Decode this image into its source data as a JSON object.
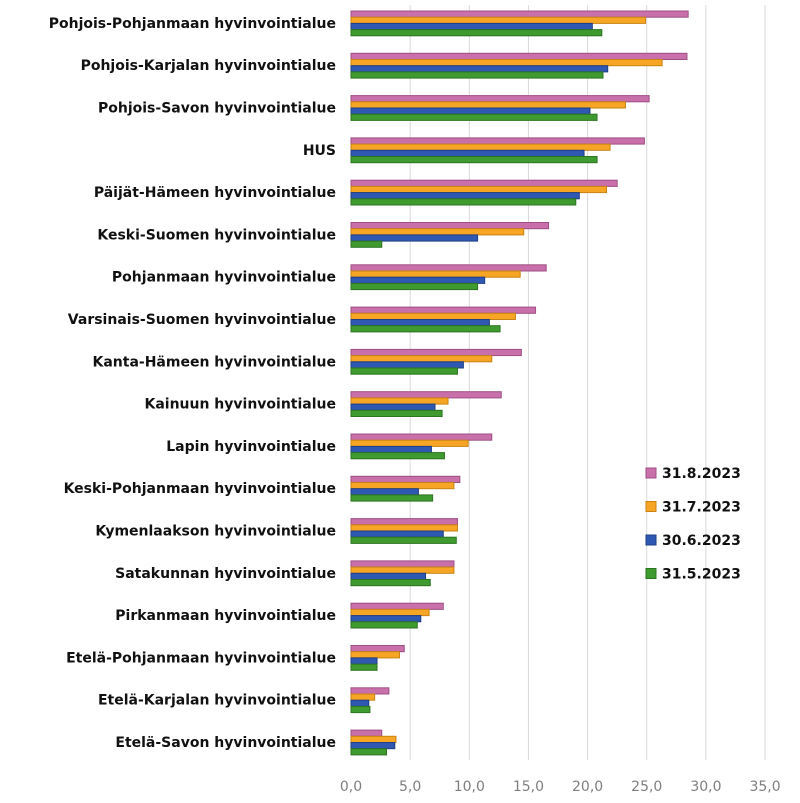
{
  "chart_data": {
    "type": "bar",
    "orientation": "horizontal",
    "categories": [
      "Pohjois-Pohjanmaan hyvinvointialue",
      "Pohjois-Karjalan hyvinvointialue",
      "Pohjois-Savon hyvinvointialue",
      "HUS",
      "Päijät-Hämeen hyvinvointialue",
      "Keski-Suomen hyvinvointialue",
      "Pohjanmaan hyvinvointialue",
      "Varsinais-Suomen hyvinvointialue",
      "Kanta-Hämeen hyvinvointialue",
      "Kainuun hyvinvointialue",
      "Lapin hyvinvointialue",
      "Keski-Pohjanmaan hyvinvointialue",
      "Kymenlaakson hyvinvointialue",
      "Satakunnan hyvinvointialue",
      "Pirkanmaan hyvinvointialue",
      "Etelä-Pohjanmaan hyvinvointialue",
      "Etelä-Karjalan hyvinvointialue",
      "Etelä-Savon hyvinvointialue"
    ],
    "series": [
      {
        "name": "31.8.2023",
        "color": "#c96faa",
        "border": "#9e4f84",
        "values": [
          28.5,
          28.4,
          25.2,
          24.8,
          22.5,
          16.7,
          16.5,
          15.6,
          14.4,
          12.7,
          11.9,
          9.2,
          9.0,
          8.7,
          7.8,
          4.5,
          3.2,
          2.6
        ]
      },
      {
        "name": "31.7.2023",
        "color": "#f7a524",
        "border": "#c98313",
        "values": [
          24.9,
          26.3,
          23.2,
          21.9,
          21.6,
          14.6,
          14.3,
          13.9,
          11.9,
          8.2,
          9.9,
          8.7,
          9.0,
          8.7,
          6.6,
          4.1,
          2.0,
          3.8
        ]
      },
      {
        "name": "30.6.2023",
        "color": "#2f58b3",
        "border": "#1f3f85",
        "values": [
          20.4,
          21.7,
          20.2,
          19.7,
          19.3,
          10.7,
          11.3,
          11.7,
          9.5,
          7.1,
          6.8,
          5.7,
          7.8,
          6.3,
          5.9,
          2.2,
          1.5,
          3.7
        ]
      },
      {
        "name": "31.5.2023",
        "color": "#3f9a2f",
        "border": "#2c7421",
        "values": [
          21.2,
          21.3,
          20.8,
          20.8,
          19.0,
          2.6,
          10.7,
          12.6,
          9.0,
          7.7,
          7.9,
          6.9,
          8.9,
          6.7,
          5.6,
          2.2,
          1.6,
          3.0
        ]
      }
    ],
    "xlim": [
      0,
      35
    ],
    "xticks": [
      "0,0",
      "5,0",
      "10,0",
      "15,0",
      "20,0",
      "25,0",
      "30,0",
      "35,0"
    ],
    "xtick_values": [
      0,
      5,
      10,
      15,
      20,
      25,
      30,
      35
    ],
    "grid": "vertical",
    "legend_position": "right",
    "title": "",
    "xlabel": "",
    "ylabel": ""
  }
}
